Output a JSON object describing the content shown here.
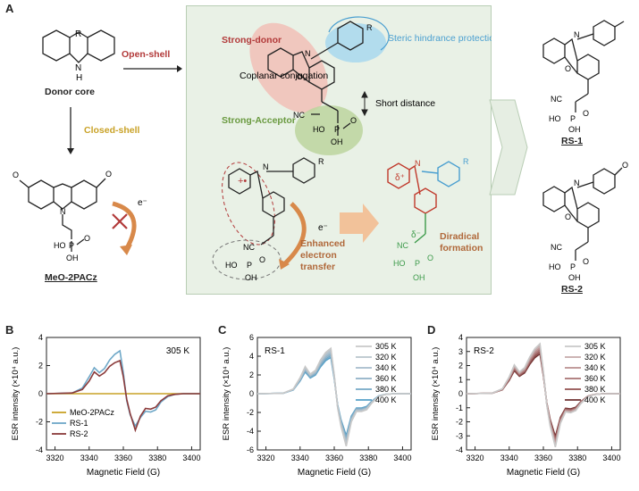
{
  "figure": {
    "panel_a": {
      "letter": "A",
      "donor_core_label": "Donor core",
      "donor_core_atoms": {
        "R": "R",
        "N": "N",
        "H": "H"
      },
      "open_shell": "Open-shell",
      "closed_shell": "Closed-shell",
      "meo2pacz_label": "MeO-2PACz",
      "electron": "e⁻",
      "scheme": {
        "strong_donor": "Strong-donor",
        "steric": "Steric hindrance protection",
        "coplanar": "Coplanar conjugation",
        "strong_acceptor": "Strong-Acceptor",
        "short_distance": "Short distance",
        "enhanced_transfer": "Enhanced electron transfer",
        "diradical": "Diradical formation",
        "electron": "e⁻",
        "delta_plus": "δ⁺",
        "delta_minus": "δ⁻"
      },
      "rs1_label": "RS-1",
      "rs2_label": "RS-2",
      "atoms": {
        "N": "N",
        "O": "O",
        "R": "R",
        "P": "P",
        "HO": "HO",
        "OH": "OH",
        "NC": "NC"
      }
    },
    "colors": {
      "meo": "#c9a227",
      "rs1": "#6fa8c8",
      "rs2": "#8b3a3a",
      "red": "#b23a3a",
      "blue": "#4a9fd0",
      "green": "#6a9a40",
      "orange": "#d8894a"
    }
  },
  "chart_data": [
    {
      "type": "line",
      "panel": "B",
      "title": "305 K",
      "xlabel": "Magnetic Field (G)",
      "ylabel": "ESR intensity (×10⁴ a.u.)",
      "xlim": [
        3315,
        3405
      ],
      "ylim": [
        -4,
        4
      ],
      "xticks": [
        3320,
        3340,
        3360,
        3380,
        3400
      ],
      "yticks": [
        -4,
        -2,
        0,
        2,
        4
      ],
      "legend_position": "bottom-left",
      "series": [
        {
          "name": "MeO-2PACz",
          "color": "#c9a227",
          "x": [
            3315,
            3405
          ],
          "y": [
            0,
            0
          ]
        },
        {
          "name": "RS-1",
          "color": "#6fa8c8",
          "x": [
            3315,
            3330,
            3336,
            3340,
            3343,
            3346,
            3349,
            3352,
            3355,
            3358,
            3360,
            3362,
            3364,
            3367,
            3370,
            3373,
            3376,
            3379,
            3382,
            3386,
            3390,
            3395,
            3405
          ],
          "y": [
            0,
            0.05,
            0.4,
            1.2,
            1.85,
            1.5,
            1.8,
            2.4,
            2.8,
            3.05,
            1.5,
            -0.5,
            -1.5,
            -2.3,
            -1.7,
            -1.25,
            -1.3,
            -1.15,
            -0.6,
            -0.2,
            -0.05,
            0,
            0
          ]
        },
        {
          "name": "RS-2",
          "color": "#8b3a3a",
          "x": [
            3315,
            3330,
            3336,
            3340,
            3343,
            3346,
            3349,
            3352,
            3355,
            3358,
            3360,
            3362,
            3364,
            3367,
            3370,
            3373,
            3376,
            3379,
            3382,
            3386,
            3390,
            3395,
            3405
          ],
          "y": [
            0,
            0.05,
            0.3,
            0.9,
            1.55,
            1.25,
            1.5,
            1.95,
            2.2,
            2.35,
            1.2,
            -0.4,
            -1.4,
            -2.6,
            -1.6,
            -1.05,
            -1.1,
            -0.95,
            -0.5,
            -0.15,
            -0.05,
            0,
            0
          ]
        }
      ]
    },
    {
      "type": "line",
      "panel": "C",
      "title": "RS-1",
      "xlabel": "Magnetic Field (G)",
      "ylabel": "ESR intensity (×10⁴ a.u.)",
      "xlim": [
        3315,
        3405
      ],
      "ylim": [
        -6,
        6
      ],
      "xticks": [
        3320,
        3340,
        3360,
        3380,
        3400
      ],
      "yticks": [
        -6,
        -4,
        -2,
        0,
        2,
        4,
        6
      ],
      "legend_position": "top-right",
      "shape": {
        "x": [
          3315,
          3330,
          3336,
          3340,
          3343,
          3346,
          3349,
          3352,
          3355,
          3358,
          3360,
          3362,
          3364,
          3367,
          3370,
          3373,
          3376,
          3379,
          3382,
          3386,
          3390,
          3395,
          3405
        ],
        "y": [
          0,
          0.05,
          0.5,
          1.7,
          2.9,
          2.1,
          2.5,
          3.6,
          4.4,
          4.85,
          2.0,
          -1.5,
          -3.5,
          -5.6,
          -3.0,
          -1.9,
          -1.9,
          -1.7,
          -1.0,
          -0.3,
          -0.08,
          0,
          0
        ]
      },
      "series": [
        {
          "name": "305 K",
          "color": "#c8c8c8",
          "scale": 1.0
        },
        {
          "name": "320 K",
          "color": "#b8c4cc",
          "scale": 0.96
        },
        {
          "name": "340 K",
          "color": "#a6bccb",
          "scale": 0.92
        },
        {
          "name": "360 K",
          "color": "#8fb1c6",
          "scale": 0.88
        },
        {
          "name": "380 K",
          "color": "#74a8c6",
          "scale": 0.84
        },
        {
          "name": "400 K",
          "color": "#55a0c8",
          "scale": 0.8
        }
      ]
    },
    {
      "type": "line",
      "panel": "D",
      "title": "RS-2",
      "xlabel": "Magnetic Field (G)",
      "ylabel": "ESR intensity (×10⁴ a.u.)",
      "xlim": [
        3315,
        3405
      ],
      "ylim": [
        -4,
        4
      ],
      "xticks": [
        3320,
        3340,
        3360,
        3380,
        3400
      ],
      "yticks": [
        -4,
        -3,
        -2,
        -1,
        0,
        1,
        2,
        3,
        4
      ],
      "legend_position": "top-right",
      "shape": {
        "x": [
          3315,
          3330,
          3336,
          3340,
          3343,
          3346,
          3349,
          3352,
          3355,
          3358,
          3360,
          3362,
          3364,
          3367,
          3370,
          3373,
          3376,
          3379,
          3382,
          3386,
          3390,
          3395,
          3405
        ],
        "y": [
          0,
          0.04,
          0.35,
          1.2,
          2.05,
          1.55,
          1.85,
          2.6,
          3.2,
          3.55,
          1.6,
          -0.8,
          -2.3,
          -3.8,
          -2.1,
          -1.3,
          -1.35,
          -1.2,
          -0.7,
          -0.22,
          -0.06,
          0,
          0
        ]
      },
      "series": [
        {
          "name": "305 K",
          "color": "#c8c8c8",
          "scale": 1.0
        },
        {
          "name": "320 K",
          "color": "#c4aaaa",
          "scale": 0.96
        },
        {
          "name": "340 K",
          "color": "#b98f8f",
          "scale": 0.92
        },
        {
          "name": "360 K",
          "color": "#a87373",
          "scale": 0.88
        },
        {
          "name": "380 K",
          "color": "#93504f",
          "scale": 0.84
        },
        {
          "name": "400 K",
          "color": "#6e3030",
          "scale": 0.8
        }
      ]
    }
  ]
}
